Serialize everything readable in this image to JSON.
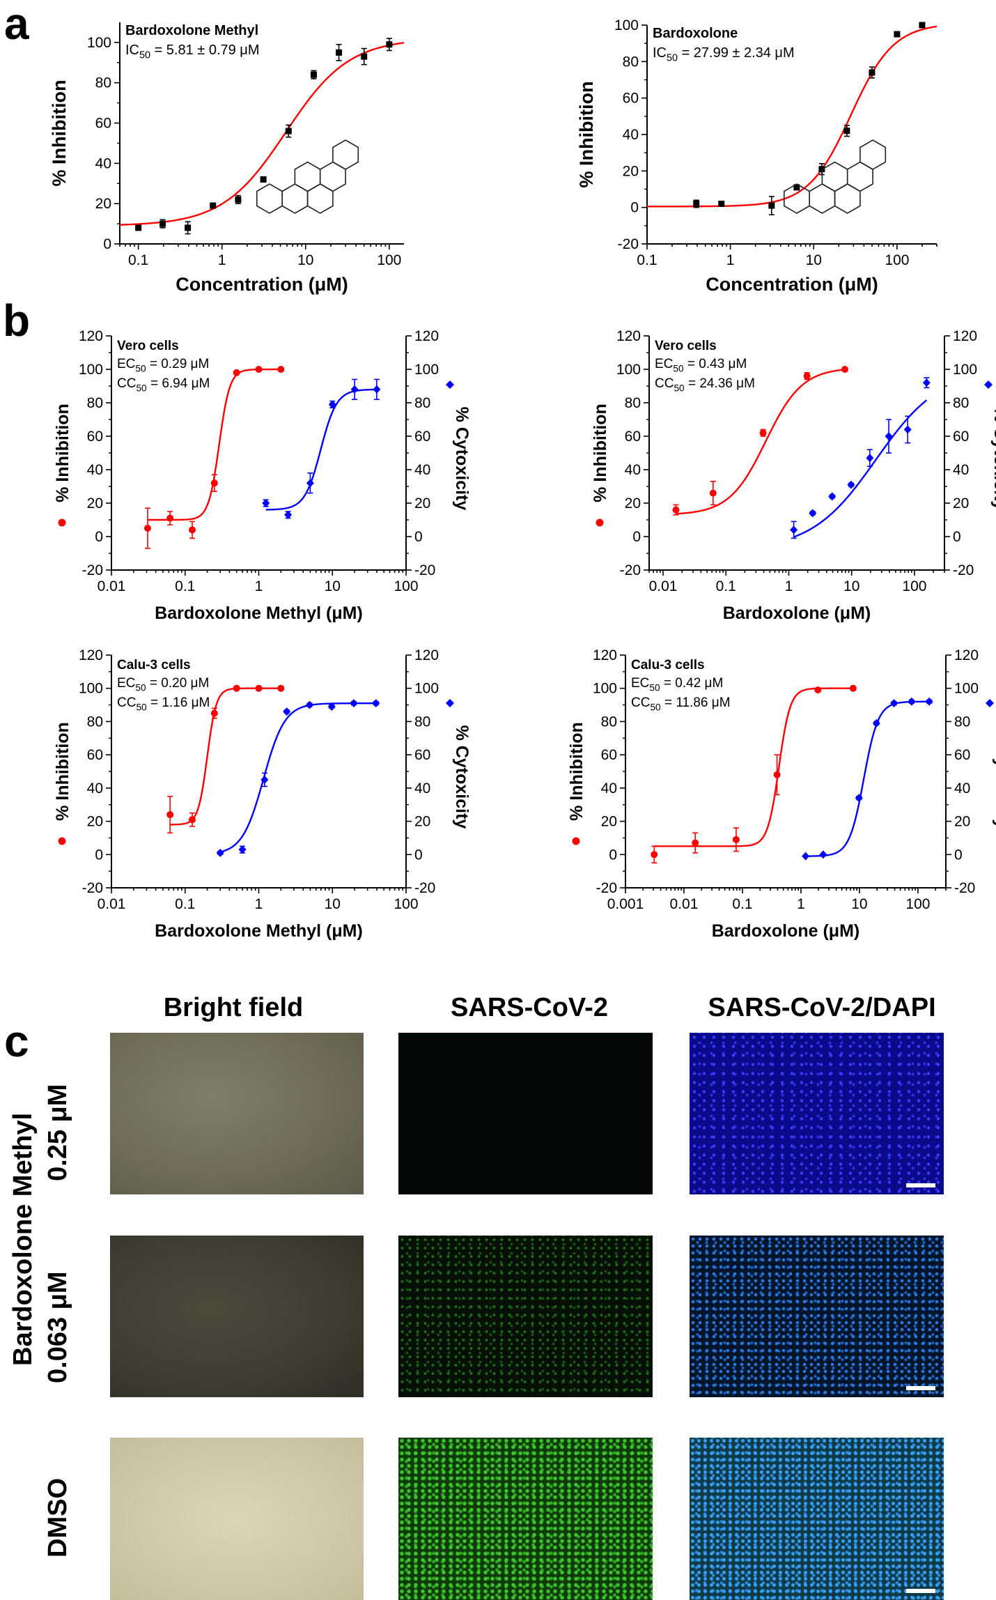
{
  "panels": {
    "a": "a",
    "b": "b",
    "c": "c"
  },
  "chart_data": [
    {
      "type": "scatter",
      "panel": "a",
      "title": "Bardoxolone Methyl",
      "annotation": [
        "IC50 = 5.81 ± 0.79 μM"
      ],
      "xlabel": "Concentration (μM)",
      "ylabel": "% Inhibition",
      "xscale": "log",
      "xlim": [
        0.06,
        150
      ],
      "ylim": [
        0,
        110
      ],
      "xticks": [
        0.1,
        1,
        10,
        100
      ],
      "xtick_labels": [
        "0.1",
        "1",
        "10",
        "100"
      ],
      "yticks": [
        0,
        20,
        40,
        60,
        80,
        100
      ],
      "series": [
        {
          "name": "% Inhibition",
          "color": "#ff0000",
          "marker": "square",
          "marker_color": "#000000",
          "x": [
            0.1,
            0.195,
            0.39,
            0.78,
            1.56,
            3.125,
            6.25,
            12.5,
            25,
            50,
            100
          ],
          "y": [
            8,
            10,
            8,
            19,
            22,
            32,
            56,
            84,
            95,
            93,
            99
          ],
          "err": [
            1,
            2,
            3,
            1,
            2,
            1,
            3,
            2,
            4,
            4,
            3
          ],
          "fit": {
            "ic50": 5.81,
            "bottom": 9,
            "top": 102,
            "hill": 1.15
          }
        }
      ]
    },
    {
      "type": "scatter",
      "panel": "a",
      "title": "Bardoxolone",
      "annotation": [
        "IC50 = 27.99 ± 2.34 μM"
      ],
      "xlabel": "Concentration (μM)",
      "ylabel": "% Inhibition",
      "xscale": "log",
      "xlim": [
        0.1,
        300
      ],
      "ylim": [
        -20,
        100
      ],
      "xticks": [
        0.1,
        1,
        10,
        100
      ],
      "xtick_labels": [
        "0.1",
        "1",
        "10",
        "100"
      ],
      "yticks": [
        -20,
        0,
        20,
        40,
        60,
        80,
        100
      ],
      "series": [
        {
          "name": "% Inhibition",
          "color": "#ff0000",
          "marker": "square",
          "marker_color": "#000000",
          "x": [
            0.39,
            0.78,
            3.125,
            6.25,
            12.5,
            25,
            50,
            100,
            200
          ],
          "y": [
            2,
            2,
            1,
            11,
            21,
            42,
            74,
            95,
            100
          ],
          "err": [
            2,
            1,
            5,
            1,
            3,
            3,
            3,
            1,
            1
          ],
          "fit": {
            "ic50": 27.99,
            "bottom": 0.5,
            "top": 101,
            "hill": 1.7
          }
        }
      ]
    },
    {
      "type": "scatter",
      "panel": "b",
      "title": "Vero cells",
      "annotation": [
        "EC50 = 0.29 μM",
        "CC50 = 6.94 μM"
      ],
      "xlabel": "Bardoxolone Methyl (μM)",
      "ylabel": "% Inhibition",
      "y2label": "% Cytoxicity",
      "xscale": "log",
      "xlim": [
        0.01,
        100
      ],
      "ylim": [
        -20,
        120
      ],
      "xticks": [
        0.01,
        0.1,
        1,
        10,
        100
      ],
      "xtick_labels": [
        "0.01",
        "0.1",
        "1",
        "10",
        "100"
      ],
      "yticks": [
        -20,
        0,
        20,
        40,
        60,
        80,
        100,
        120
      ],
      "series": [
        {
          "name": "% Inhibition",
          "color": "#ff0000",
          "marker": "circle",
          "x": [
            0.031,
            0.0625,
            0.125,
            0.25,
            0.5,
            1,
            2
          ],
          "y": [
            5,
            11,
            4,
            32,
            98,
            100,
            100
          ],
          "err": [
            12,
            4,
            5,
            5,
            1,
            1,
            0
          ],
          "fit": {
            "ic50": 0.29,
            "bottom": 10,
            "top": 100,
            "hill": 6,
            "xmin": 0.031,
            "xmax": 2
          }
        },
        {
          "name": "% Cytoxicity",
          "color": "#0000ff",
          "marker": "diamond",
          "x": [
            1.25,
            2.5,
            5,
            10,
            20,
            40
          ],
          "y": [
            20,
            13,
            32,
            79,
            88,
            88
          ],
          "err": [
            2,
            2,
            6,
            2,
            6,
            6
          ],
          "fit": {
            "ic50": 6.94,
            "bottom": 16,
            "top": 88,
            "hill": 4,
            "xmin": 1.25,
            "xmax": 40
          }
        }
      ]
    },
    {
      "type": "scatter",
      "panel": "b",
      "title": "Vero cells",
      "annotation": [
        "EC50 = 0.43 μM",
        "CC50 = 24.36 μM"
      ],
      "xlabel": "Bardoxolone (μM)",
      "ylabel": "% Inhibition",
      "y2label": "% Cytoxicity",
      "xscale": "log",
      "xlim": [
        0.006,
        300
      ],
      "ylim": [
        -20,
        120
      ],
      "xticks": [
        0.01,
        0.1,
        1,
        10,
        100
      ],
      "xtick_labels": [
        "0.01",
        "0.1",
        "1",
        "10",
        "100"
      ],
      "yticks": [
        -20,
        0,
        20,
        40,
        60,
        80,
        100,
        120
      ],
      "series": [
        {
          "name": "% Inhibition",
          "color": "#ff0000",
          "marker": "circle",
          "x": [
            0.016,
            0.0625,
            0.39,
            1.95,
            7.8
          ],
          "y": [
            16,
            26,
            62,
            96,
            100
          ],
          "err": [
            3,
            7,
            2,
            2,
            0
          ],
          "fit": {
            "ic50": 0.43,
            "bottom": 13,
            "top": 101,
            "hill": 1.5,
            "xmin": 0.016,
            "xmax": 7.8
          }
        },
        {
          "name": "% Cytoxicity",
          "color": "#0000ff",
          "marker": "diamond",
          "x": [
            1.2,
            2.4,
            4.9,
            9.8,
            19.5,
            39,
            78,
            156
          ],
          "y": [
            4,
            14,
            24,
            31,
            47,
            60,
            64,
            92
          ],
          "err": [
            5,
            1,
            1,
            1,
            5,
            10,
            8,
            3
          ],
          "fit": {
            "ic50": 24.36,
            "bottom": -8,
            "top": 100,
            "hill": 0.85,
            "xmin": 1.2,
            "xmax": 156
          }
        }
      ]
    },
    {
      "type": "scatter",
      "panel": "b",
      "title": "Calu-3 cells",
      "annotation": [
        "EC50 = 0.20 μM",
        "CC50 = 1.16 μM"
      ],
      "xlabel": "Bardoxolone Methyl (μM)",
      "ylabel": "% Inhibition",
      "y2label": "% Cytoxicity",
      "xscale": "log",
      "xlim": [
        0.01,
        100
      ],
      "ylim": [
        -20,
        120
      ],
      "xticks": [
        0.01,
        0.1,
        1,
        10,
        100
      ],
      "xtick_labels": [
        "0.01",
        "0.1",
        "1",
        "10",
        "100"
      ],
      "yticks": [
        -20,
        0,
        20,
        40,
        60,
        80,
        100,
        120
      ],
      "series": [
        {
          "name": "% Inhibition",
          "color": "#ff0000",
          "marker": "circle",
          "x": [
            0.0625,
            0.125,
            0.25,
            0.5,
            1,
            2
          ],
          "y": [
            24,
            21,
            85,
            100,
            100,
            100
          ],
          "err": [
            11,
            4,
            3,
            1,
            0,
            0
          ],
          "fit": {
            "ic50": 0.2,
            "bottom": 18,
            "top": 100,
            "hill": 7,
            "xmin": 0.0625,
            "xmax": 2
          }
        },
        {
          "name": "% Cytoxicity",
          "color": "#0000ff",
          "marker": "diamond",
          "x": [
            0.3,
            0.6,
            1.2,
            2.4,
            4.9,
            9.8,
            19.5,
            39
          ],
          "y": [
            1,
            3,
            45,
            86,
            90,
            89,
            91,
            91
          ],
          "err": [
            1,
            2,
            4,
            1,
            1,
            1,
            1,
            1
          ],
          "fit": {
            "ic50": 1.16,
            "bottom": 0,
            "top": 91,
            "hill": 3,
            "xmin": 0.3,
            "xmax": 39
          }
        }
      ]
    },
    {
      "type": "scatter",
      "panel": "b",
      "title": "Calu-3 cells",
      "annotation": [
        "EC50 = 0.42 μM",
        "CC50 = 11.86 μM"
      ],
      "xlabel": "Bardoxolone (μM)",
      "ylabel": "% Inhibition",
      "y2label": "% Cytoxicity",
      "xscale": "log",
      "xlim": [
        0.001,
        300
      ],
      "ylim": [
        -20,
        120
      ],
      "xticks": [
        0.001,
        0.01,
        0.1,
        1,
        10,
        100
      ],
      "xtick_labels": [
        "0.001",
        "0.01",
        "0.1",
        "1",
        "10",
        "100"
      ],
      "yticks": [
        -20,
        0,
        20,
        40,
        60,
        80,
        100,
        120
      ],
      "series": [
        {
          "name": "% Inhibition",
          "color": "#ff0000",
          "marker": "circle",
          "x": [
            0.0031,
            0.0156,
            0.078,
            0.39,
            1.95,
            7.8
          ],
          "y": [
            0,
            7,
            9,
            48,
            99,
            100
          ],
          "err": [
            5,
            6,
            7,
            12,
            0,
            0
          ],
          "fit": {
            "ic50": 0.42,
            "bottom": 5,
            "top": 100,
            "hill": 4.5,
            "xmin": 0.0031,
            "xmax": 7.8
          }
        },
        {
          "name": "% Cytoxicity",
          "color": "#0000ff",
          "marker": "diamond",
          "x": [
            1.2,
            2.4,
            9.8,
            19.5,
            39,
            78,
            156
          ],
          "y": [
            -1,
            0,
            34,
            79,
            91,
            92,
            92
          ],
          "err": [
            0,
            0,
            1,
            1,
            1,
            1,
            1
          ],
          "fit": {
            "ic50": 11.86,
            "bottom": -1,
            "top": 92,
            "hill": 3.5,
            "xmin": 1.2,
            "xmax": 156
          }
        }
      ]
    }
  ],
  "micrographs": {
    "columns": [
      "Bright field",
      "SARS-CoV-2",
      "SARS-CoV-2/DAPI"
    ],
    "group_label": "Bardoxolone Methyl",
    "rows": [
      "0.25 μM",
      "0.063 μM",
      "DMSO"
    ]
  }
}
